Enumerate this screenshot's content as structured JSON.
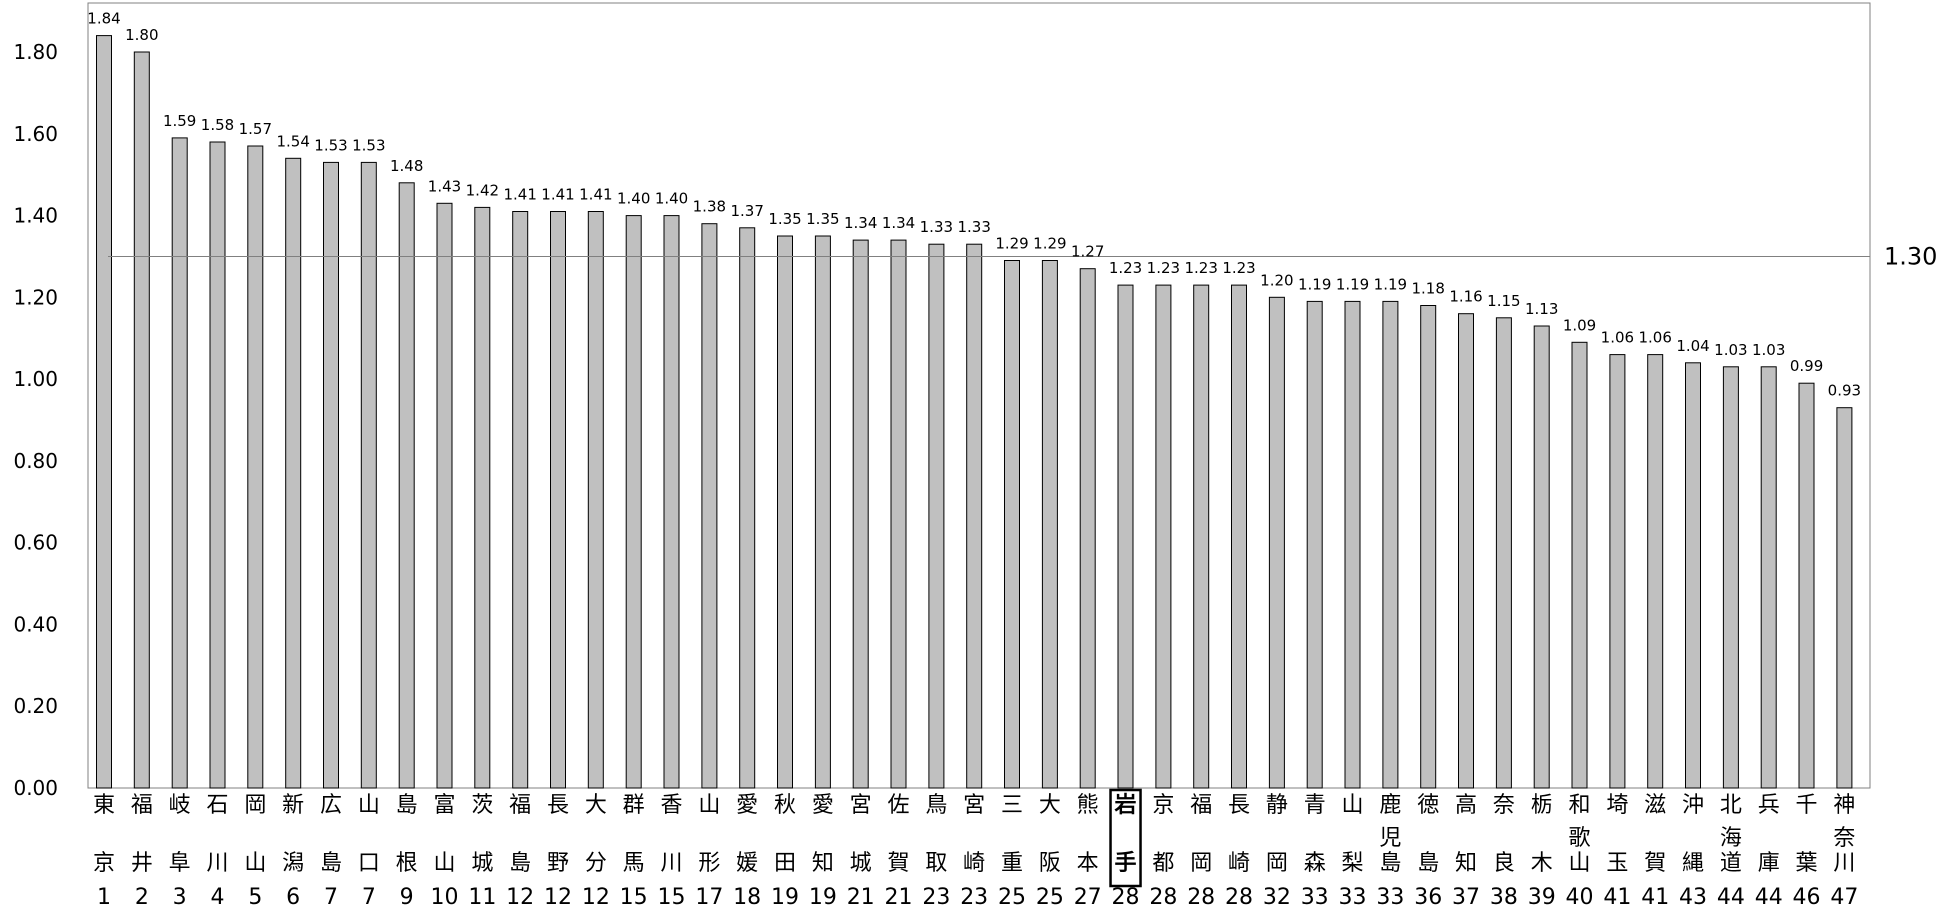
{
  "chart_data": {
    "type": "bar",
    "ylim": [
      0,
      1.9
    ],
    "y_ticks": [
      "0.00",
      "0.20",
      "0.40",
      "0.60",
      "0.80",
      "1.00",
      "1.20",
      "1.40",
      "1.60",
      "1.80"
    ],
    "y_tick_values": [
      0,
      0.2,
      0.4,
      0.6,
      0.8,
      1.0,
      1.2,
      1.4,
      1.6,
      1.8
    ],
    "reference_line": {
      "value": 1.3,
      "label": "1.30"
    },
    "highlight_category": "岩手",
    "bar_color": "#c0c0c0",
    "bar_border_color": "#000000",
    "grid": false,
    "categories": [
      {
        "name": "東京",
        "rank": "1",
        "value": 1.84,
        "label": "1.84"
      },
      {
        "name": "福井",
        "rank": "2",
        "value": 1.8,
        "label": "1.80"
      },
      {
        "name": "岐阜",
        "rank": "3",
        "value": 1.59,
        "label": "1.59"
      },
      {
        "name": "石川",
        "rank": "4",
        "value": 1.58,
        "label": "1.58"
      },
      {
        "name": "岡山",
        "rank": "5",
        "value": 1.57,
        "label": "1.57"
      },
      {
        "name": "新潟",
        "rank": "6",
        "value": 1.54,
        "label": "1.54"
      },
      {
        "name": "広島",
        "rank": "7",
        "value": 1.53,
        "label": "1.53"
      },
      {
        "name": "山口",
        "rank": "7",
        "value": 1.53,
        "label": "1.53"
      },
      {
        "name": "島根",
        "rank": "9",
        "value": 1.48,
        "label": "1.48"
      },
      {
        "name": "富山",
        "rank": "10",
        "value": 1.43,
        "label": "1.43"
      },
      {
        "name": "茨城",
        "rank": "11",
        "value": 1.42,
        "label": "1.42"
      },
      {
        "name": "福島",
        "rank": "12",
        "value": 1.41,
        "label": "1.41"
      },
      {
        "name": "長野",
        "rank": "12",
        "value": 1.41,
        "label": "1.41"
      },
      {
        "name": "大分",
        "rank": "12",
        "value": 1.41,
        "label": "1.41"
      },
      {
        "name": "群馬",
        "rank": "15",
        "value": 1.4,
        "label": "1.40"
      },
      {
        "name": "香川",
        "rank": "15",
        "value": 1.4,
        "label": "1.40"
      },
      {
        "name": "山形",
        "rank": "17",
        "value": 1.38,
        "label": "1.38"
      },
      {
        "name": "愛媛",
        "rank": "18",
        "value": 1.37,
        "label": "1.37"
      },
      {
        "name": "秋田",
        "rank": "19",
        "value": 1.35,
        "label": "1.35"
      },
      {
        "name": "愛知",
        "rank": "19",
        "value": 1.35,
        "label": "1.35"
      },
      {
        "name": "宮城",
        "rank": "21",
        "value": 1.34,
        "label": "1.34"
      },
      {
        "name": "佐賀",
        "rank": "21",
        "value": 1.34,
        "label": "1.34"
      },
      {
        "name": "鳥取",
        "rank": "23",
        "value": 1.33,
        "label": "1.33"
      },
      {
        "name": "宮崎",
        "rank": "23",
        "value": 1.33,
        "label": "1.33"
      },
      {
        "name": "三重",
        "rank": "25",
        "value": 1.29,
        "label": "1.29"
      },
      {
        "name": "大阪",
        "rank": "25",
        "value": 1.29,
        "label": "1.29"
      },
      {
        "name": "熊本",
        "rank": "27",
        "value": 1.27,
        "label": "1.27"
      },
      {
        "name": "岩手",
        "rank": "28",
        "value": 1.23,
        "label": "1.23"
      },
      {
        "name": "京都",
        "rank": "28",
        "value": 1.23,
        "label": "1.23"
      },
      {
        "name": "福岡",
        "rank": "28",
        "value": 1.23,
        "label": "1.23"
      },
      {
        "name": "長崎",
        "rank": "28",
        "value": 1.23,
        "label": "1.23"
      },
      {
        "name": "静岡",
        "rank": "32",
        "value": 1.2,
        "label": "1.20"
      },
      {
        "name": "青森",
        "rank": "33",
        "value": 1.19,
        "label": "1.19"
      },
      {
        "name": "山梨",
        "rank": "33",
        "value": 1.19,
        "label": "1.19"
      },
      {
        "name": "鹿児島",
        "rank": "33",
        "value": 1.19,
        "label": "1.19"
      },
      {
        "name": "徳島",
        "rank": "36",
        "value": 1.18,
        "label": "1.18"
      },
      {
        "name": "高知",
        "rank": "37",
        "value": 1.16,
        "label": "1.16"
      },
      {
        "name": "奈良",
        "rank": "38",
        "value": 1.15,
        "label": "1.15"
      },
      {
        "name": "栃木",
        "rank": "39",
        "value": 1.13,
        "label": "1.13"
      },
      {
        "name": "和歌山",
        "rank": "40",
        "value": 1.09,
        "label": "1.09"
      },
      {
        "name": "埼玉",
        "rank": "41",
        "value": 1.06,
        "label": "1.06"
      },
      {
        "name": "滋賀",
        "rank": "41",
        "value": 1.06,
        "label": "1.06"
      },
      {
        "name": "沖縄",
        "rank": "43",
        "value": 1.04,
        "label": "1.04"
      },
      {
        "name": "北海道",
        "rank": "44",
        "value": 1.03,
        "label": "1.03"
      },
      {
        "name": "兵庫",
        "rank": "44",
        "value": 1.03,
        "label": "1.03"
      },
      {
        "name": "千葉",
        "rank": "46",
        "value": 0.99,
        "label": "0.99"
      },
      {
        "name": "神奈川",
        "rank": "47",
        "value": 0.93,
        "label": "0.93"
      }
    ]
  }
}
